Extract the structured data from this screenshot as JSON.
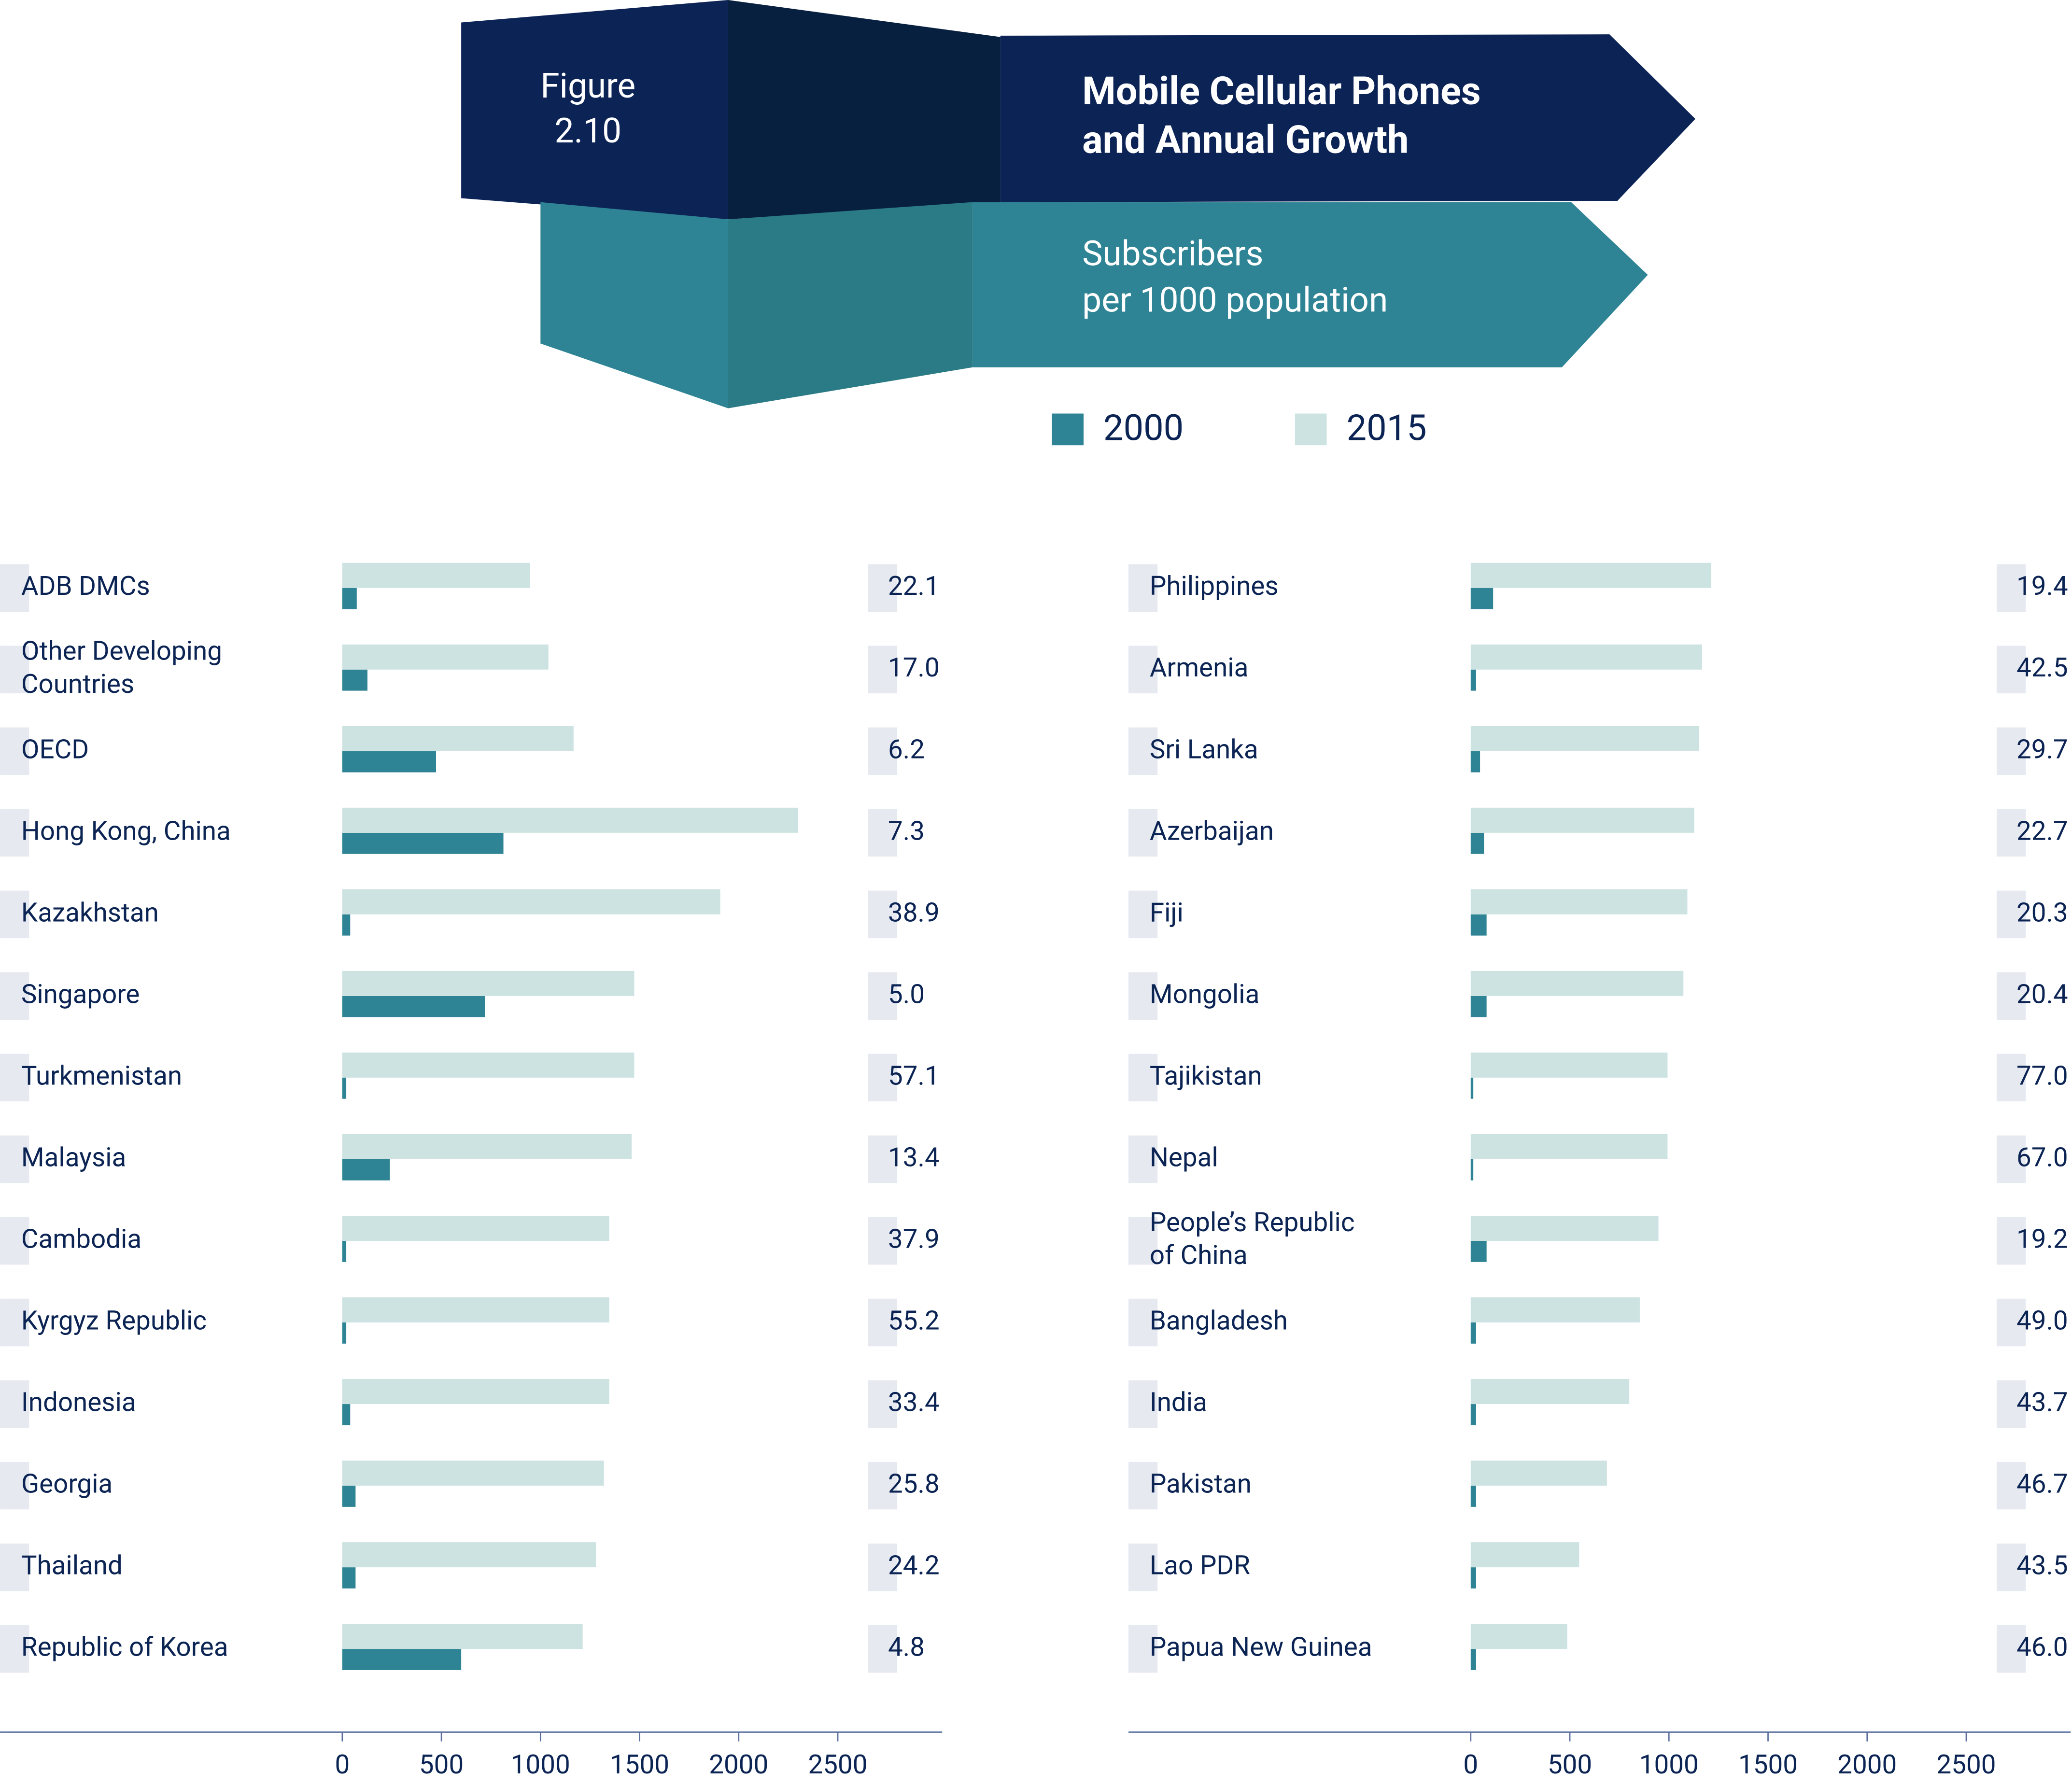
{
  "header": {
    "figure_label": [
      "Figure",
      "2.10"
    ],
    "title": [
      "Mobile Cellular Phones",
      "and Annual Growth"
    ],
    "subtitle": [
      "Subscribers",
      "per 1000 population"
    ]
  },
  "chart_data": [
    {
      "type": "bar",
      "orientation": "horizontal",
      "categories": [
        "ADB DMCs",
        "Other Developing Countries",
        "OECD",
        "Hong Kong, China",
        "Kazakhstan",
        "Singapore",
        "Turkmenistan",
        "Malaysia",
        "Cambodia",
        "Kyrgyz Republic",
        "Indonesia",
        "Georgia",
        "Thailand",
        "Republic of Korea"
      ],
      "series": [
        {
          "name": "2000",
          "color": "#2e8494",
          "values": [
            73,
            127,
            473,
            813,
            40,
            720,
            20,
            240,
            20,
            20,
            40,
            67,
            67,
            600
          ]
        },
        {
          "name": "2015",
          "color": "#cde3e2",
          "values": [
            947,
            1040,
            1167,
            2300,
            1907,
            1473,
            1473,
            1460,
            1347,
            1347,
            1347,
            1320,
            1280,
            1213
          ]
        }
      ],
      "growth_labels": [
        "22.1",
        "17.0",
        "6.2",
        "7.3",
        "38.9",
        "5.0",
        "57.1",
        "13.4",
        "37.9",
        "55.2",
        "33.4",
        "25.8",
        "24.2",
        "4.8"
      ],
      "xlim": [
        0,
        3000
      ],
      "xticks": [
        0,
        500,
        1000,
        1500,
        2000,
        2500
      ]
    },
    {
      "type": "bar",
      "orientation": "horizontal",
      "categories": [
        "Philippines",
        "Armenia",
        "Sri Lanka",
        "Azerbaijan",
        "Fiji",
        "Mongolia",
        "Tajikistan",
        "Nepal",
        "People’s Republic of China",
        "Bangladesh",
        "India",
        "Pakistan",
        "Lao PDR",
        "Papua New Guinea"
      ],
      "series": [
        {
          "name": "2000",
          "color": "#2e8494",
          "values": [
            113,
            27,
            47,
            67,
            80,
            80,
            13,
            13,
            80,
            27,
            27,
            27,
            27,
            27
          ]
        },
        {
          "name": "2015",
          "color": "#cde3e2",
          "values": [
            1213,
            1167,
            1153,
            1127,
            1093,
            1073,
            993,
            993,
            947,
            853,
            800,
            687,
            547,
            487
          ]
        }
      ],
      "growth_labels": [
        "19.4",
        "42.5",
        "29.7",
        "22.7",
        "20.3",
        "20.4",
        "77.0",
        "67.0",
        "19.2",
        "49.0",
        "43.7",
        "46.7",
        "43.5",
        "46.0"
      ],
      "xlim": [
        0,
        3000
      ],
      "xticks": [
        0,
        500,
        1000,
        1500,
        2000,
        2500
      ]
    }
  ]
}
